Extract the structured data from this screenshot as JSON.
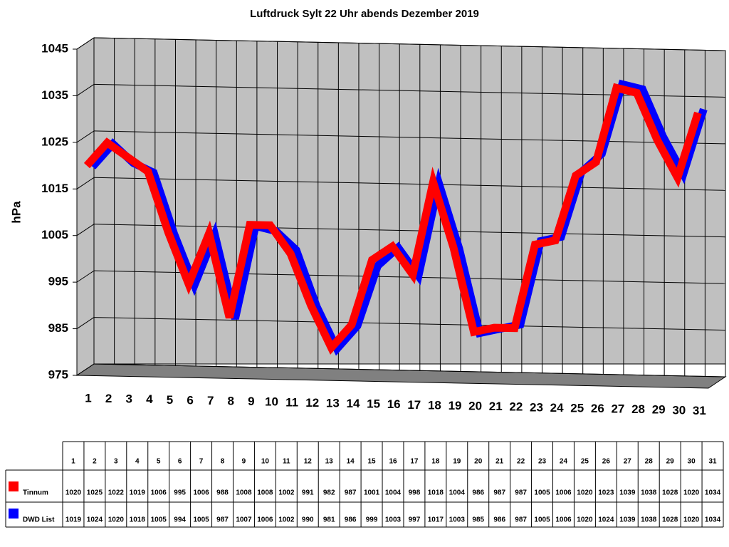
{
  "chart_data": {
    "type": "line",
    "title": "Luftdruck Sylt 22 Uhr abends Dezember 2019",
    "ylabel": "hPa",
    "categories": [
      "1",
      "2",
      "3",
      "4",
      "5",
      "6",
      "7",
      "8",
      "9",
      "10",
      "11",
      "12",
      "13",
      "14",
      "15",
      "16",
      "17",
      "18",
      "19",
      "20",
      "21",
      "22",
      "23",
      "24",
      "25",
      "26",
      "27",
      "28",
      "29",
      "30",
      "31"
    ],
    "series": [
      {
        "name": "Tinnum",
        "color": "#ff0000",
        "values": [
          1020,
          1025,
          1022,
          1019,
          1006,
          995,
          1006,
          988,
          1008,
          1008,
          1002,
          991,
          982,
          987,
          1001,
          1004,
          998,
          1018,
          1004,
          986,
          987,
          987,
          1005,
          1006,
          1020,
          1023,
          1039,
          1038,
          1028,
          1020,
          1034
        ]
      },
      {
        "name": "DWD List",
        "color": "#0000ff",
        "values": [
          1019,
          1024,
          1020,
          1018,
          1005,
          994,
          1005,
          987,
          1007,
          1006,
          1002,
          990,
          981,
          986,
          999,
          1003,
          997,
          1017,
          1003,
          985,
          986,
          987,
          1005,
          1006,
          1020,
          1024,
          1039,
          1038,
          1028,
          1020,
          1034
        ]
      }
    ],
    "ylim": [
      975,
      1045
    ],
    "yticks": [
      975,
      985,
      995,
      1005,
      1015,
      1025,
      1035,
      1045
    ],
    "grid": true
  }
}
